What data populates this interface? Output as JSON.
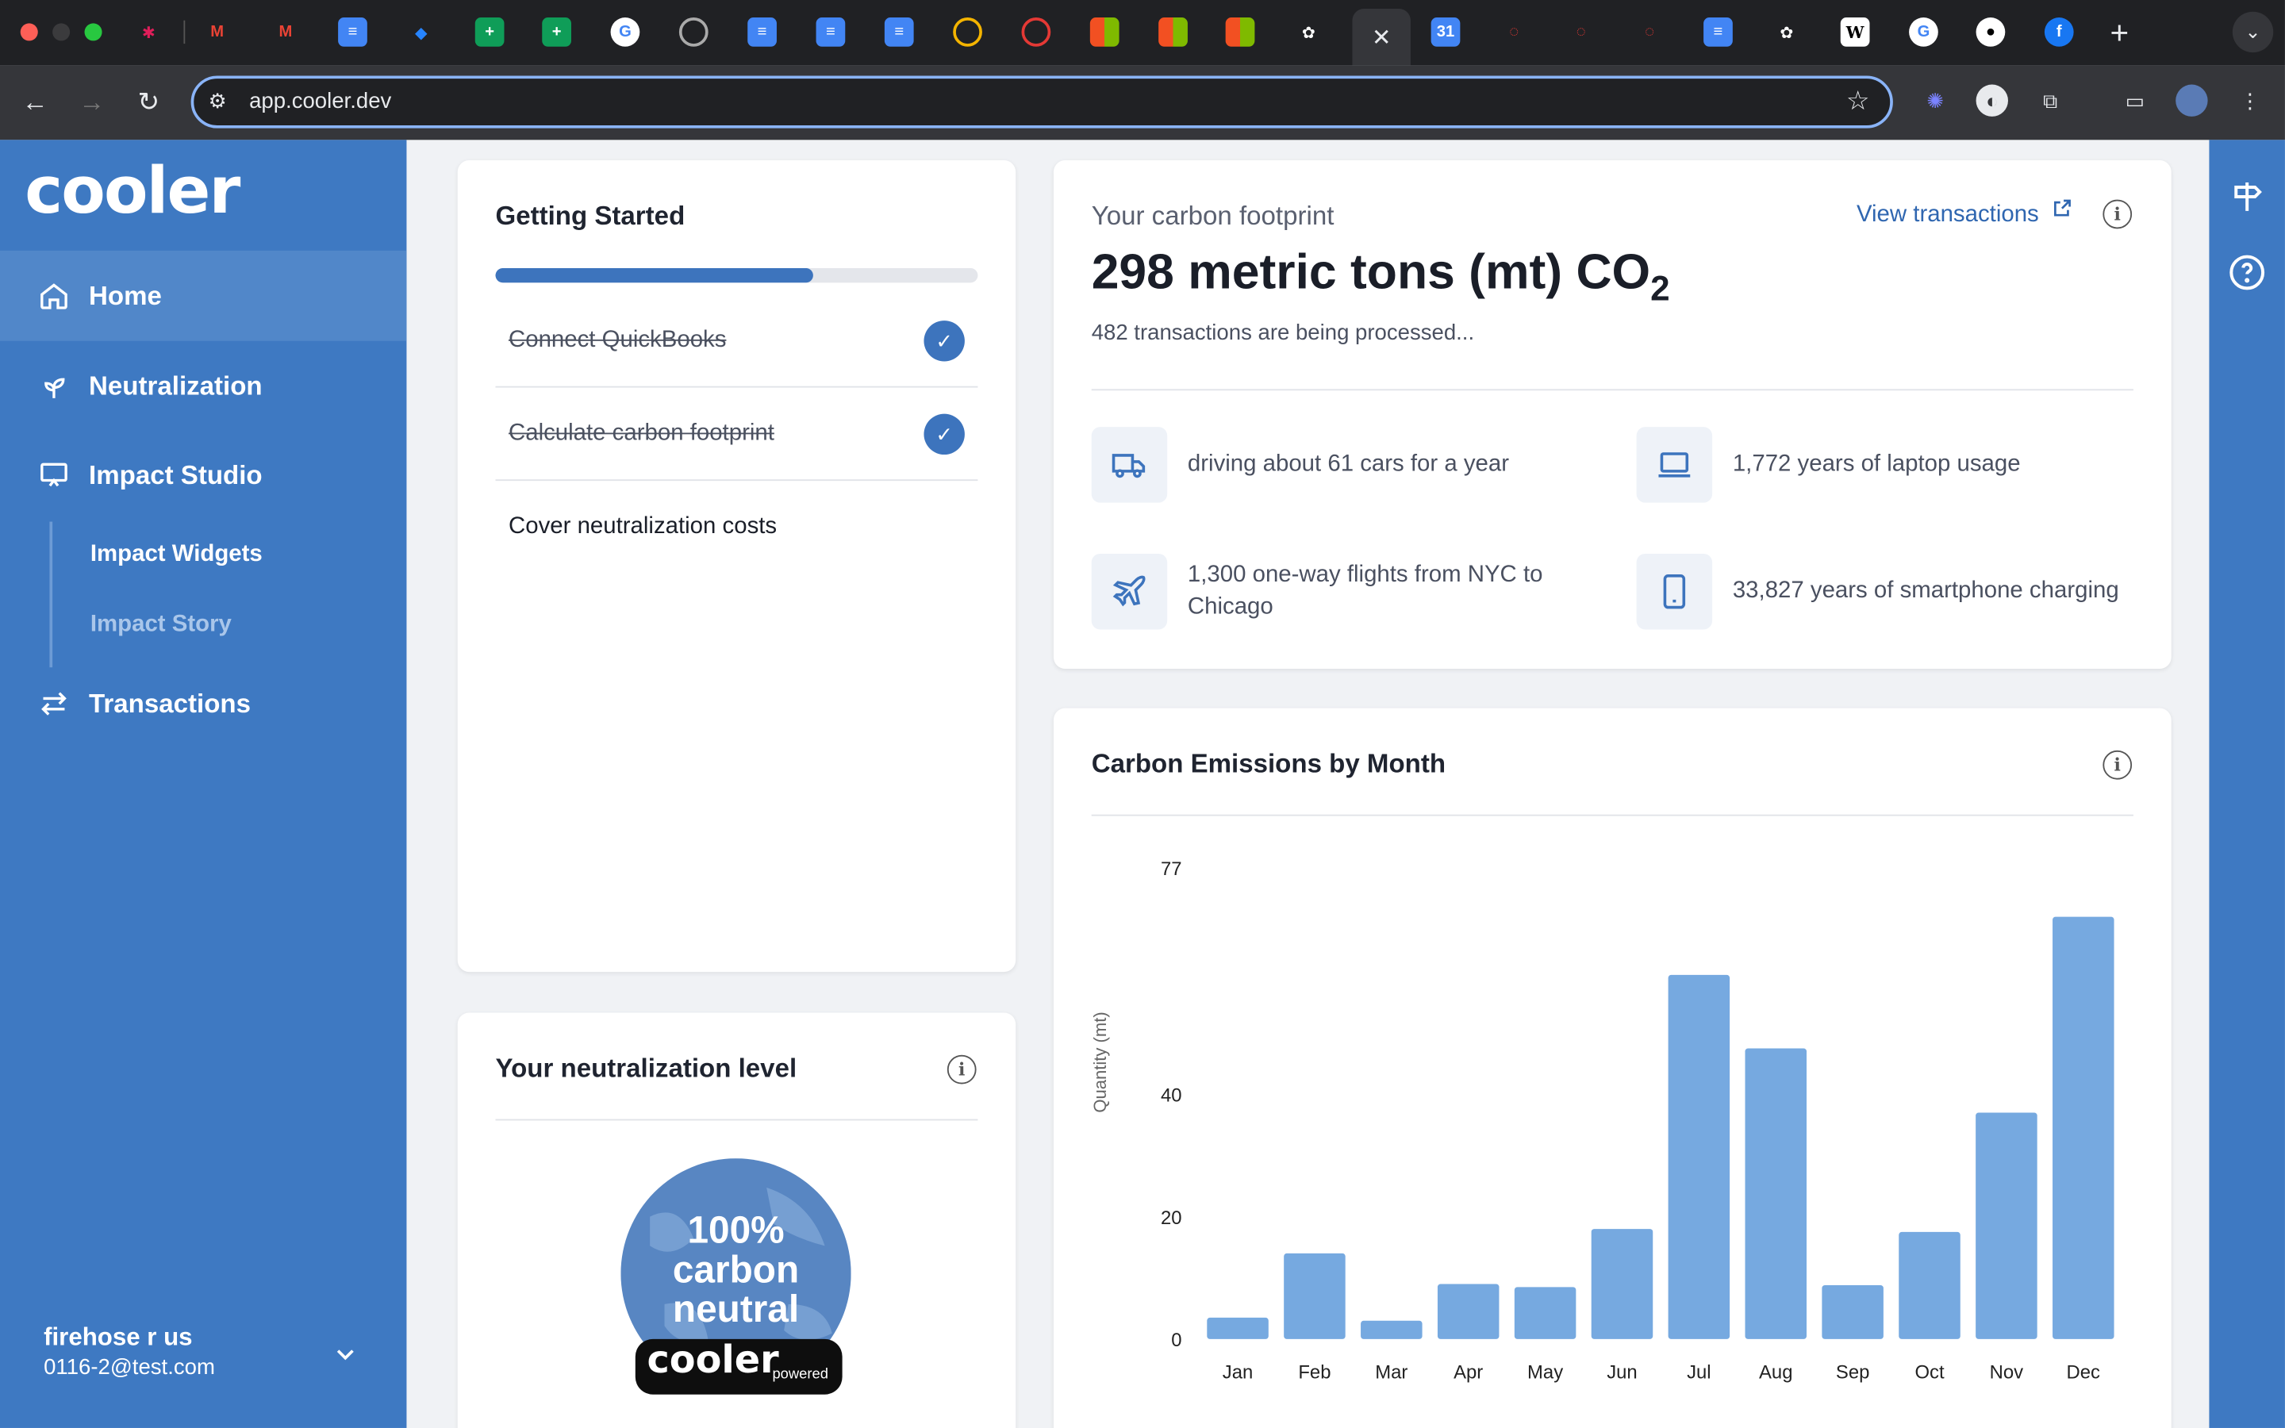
{
  "browser": {
    "url": "app.cooler.dev",
    "tab_close": "✕",
    "new_tab": "+"
  },
  "sidebar": {
    "logo": "cooler",
    "nav": [
      {
        "label": "Home",
        "active": true
      },
      {
        "label": "Neutralization"
      },
      {
        "label": "Impact Studio"
      },
      {
        "label": "Transactions"
      }
    ],
    "sub": [
      {
        "label": "Impact Widgets"
      },
      {
        "label": "Impact Story"
      }
    ],
    "user": {
      "name": "firehose r us",
      "email": "0116-2@test.com"
    }
  },
  "getting_started": {
    "title": "Getting Started",
    "progress": 0.66,
    "steps": [
      {
        "label": "Connect QuickBooks",
        "done": true
      },
      {
        "label": "Calculate carbon footprint",
        "done": true
      },
      {
        "label": "Cover neutralization costs",
        "done": false
      }
    ]
  },
  "neutralization": {
    "title": "Your neutralization level",
    "badge_line1": "100%",
    "badge_line2": "carbon",
    "badge_line3": "neutral",
    "badge_brand": "cooler",
    "badge_powered": "powered"
  },
  "footprint": {
    "label": "Your carbon footprint",
    "value_main": "298 metric tons (mt) CO",
    "value_sub": "2",
    "processing": "482 transactions are being processed...",
    "link": "View transactions",
    "equivalents": [
      {
        "icon": "truck-icon",
        "text": "driving about 61 cars for a year"
      },
      {
        "icon": "laptop-icon",
        "text": "1,772 years of laptop usage"
      },
      {
        "icon": "plane-icon",
        "text": "1,300 one-way flights from NYC to Chicago"
      },
      {
        "icon": "phone-icon",
        "text": "33,827 years of smartphone charging"
      }
    ]
  },
  "chart_data": {
    "type": "bar",
    "title": "Carbon Emissions by Month",
    "ylabel": "Quantity (mt)",
    "xlabel": "",
    "categories": [
      "Jan",
      "Feb",
      "Mar",
      "Apr",
      "May",
      "Jun",
      "Jul",
      "Aug",
      "Sep",
      "Oct",
      "Nov",
      "Dec"
    ],
    "values": [
      3.5,
      14,
      3,
      9,
      8.5,
      18,
      59.5,
      47.5,
      8.8,
      17.5,
      37,
      69
    ],
    "yticks": [
      0,
      20,
      40,
      77
    ],
    "ylim": [
      0,
      75
    ],
    "color": "#76a9e0",
    "grid": false
  }
}
